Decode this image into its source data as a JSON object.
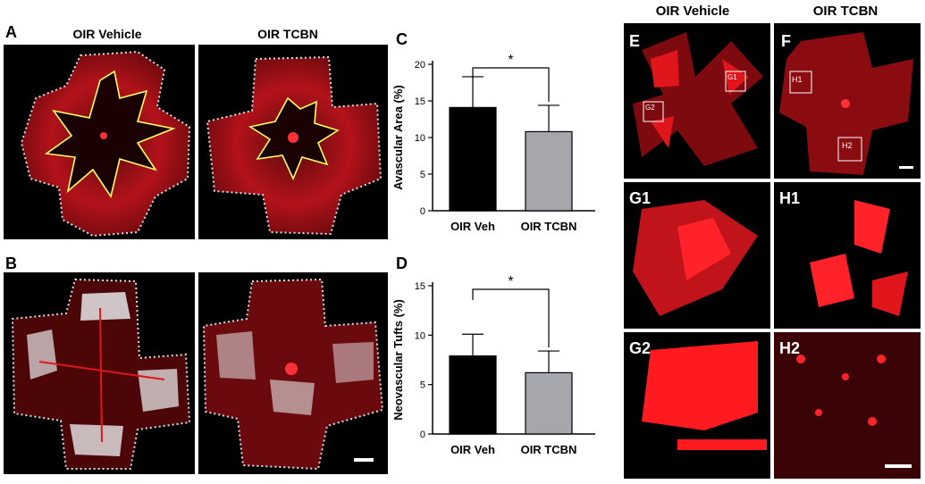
{
  "panel_labels": {
    "A": "A",
    "B": "B",
    "C": "C",
    "D": "D",
    "E": "E",
    "F": "F",
    "G1": "G1",
    "G2": "G2",
    "H1": "H1",
    "H2": "H2"
  },
  "titles": {
    "left_vehicle": "OIR Vehicle",
    "left_tcbn": "OIR TCBN",
    "right_vehicle": "OIR Vehicle",
    "right_tcbn": "OIR TCBN"
  },
  "roi_labels": {
    "g1": "G1",
    "g2": "G2",
    "h1": "H1",
    "h2": "H2"
  },
  "colors": {
    "vehicle_bar": "#000000",
    "tcbn_bar": "#a6a6ad",
    "retina_red": "#e0161c",
    "outline": "#ffff66"
  },
  "chart_data": [
    {
      "id": "C",
      "type": "bar",
      "categories": [
        "OIR Veh",
        "OIR TCBN"
      ],
      "values": [
        14.1,
        10.8
      ],
      "errors": [
        4.2,
        3.6
      ],
      "ylabel": "Avascular Area (%)",
      "ylim": [
        0,
        20
      ],
      "yticks": [
        0,
        5,
        10,
        15,
        20
      ],
      "significance": "*"
    },
    {
      "id": "D",
      "type": "bar",
      "categories": [
        "OIR Veh",
        "OIR TCBN"
      ],
      "values": [
        7.9,
        6.2
      ],
      "errors": [
        2.2,
        2.2
      ],
      "ylabel": "Neovascular Tufts (%)",
      "ylim": [
        0,
        15
      ],
      "yticks": [
        0,
        5,
        10,
        15
      ],
      "significance": "*"
    }
  ]
}
